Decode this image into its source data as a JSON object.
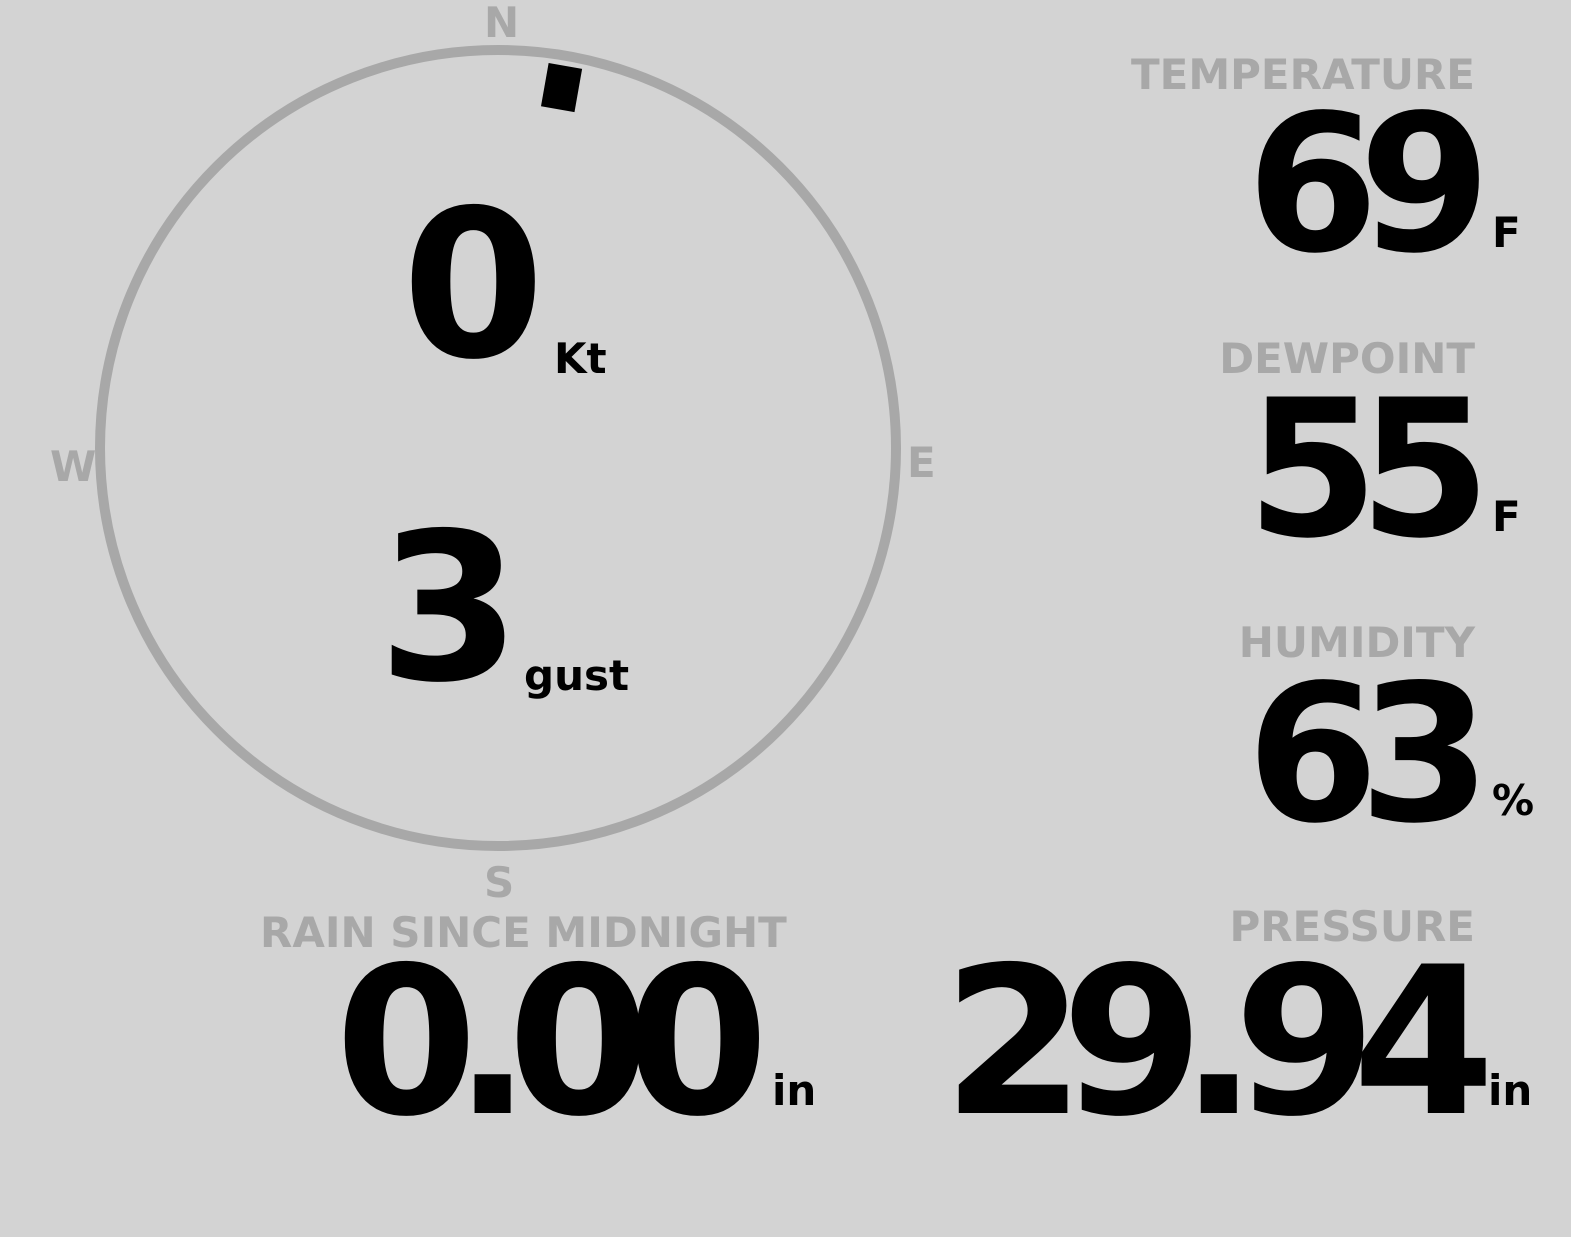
{
  "wind": {
    "compass": {
      "n": "N",
      "e": "E",
      "s": "S",
      "w": "W"
    },
    "direction_deg": 10,
    "speed": "0",
    "speed_unit": "Kt",
    "gust": "3",
    "gust_unit": "gust"
  },
  "temperature": {
    "label": "TEMPERATURE",
    "value": "69",
    "unit": "F"
  },
  "dewpoint": {
    "label": "DEWPOINT",
    "value": "55",
    "unit": "F"
  },
  "humidity": {
    "label": "HUMIDITY",
    "value": "63",
    "unit": "%"
  },
  "rain": {
    "label": "RAIN SINCE MIDNIGHT",
    "value": "0.00",
    "unit": "in"
  },
  "pressure": {
    "label": "PRESSURE",
    "value": "29.94",
    "unit": "in"
  },
  "colors": {
    "background": "#d3d3d3",
    "label": "#a8a8a8",
    "value": "#000000"
  }
}
